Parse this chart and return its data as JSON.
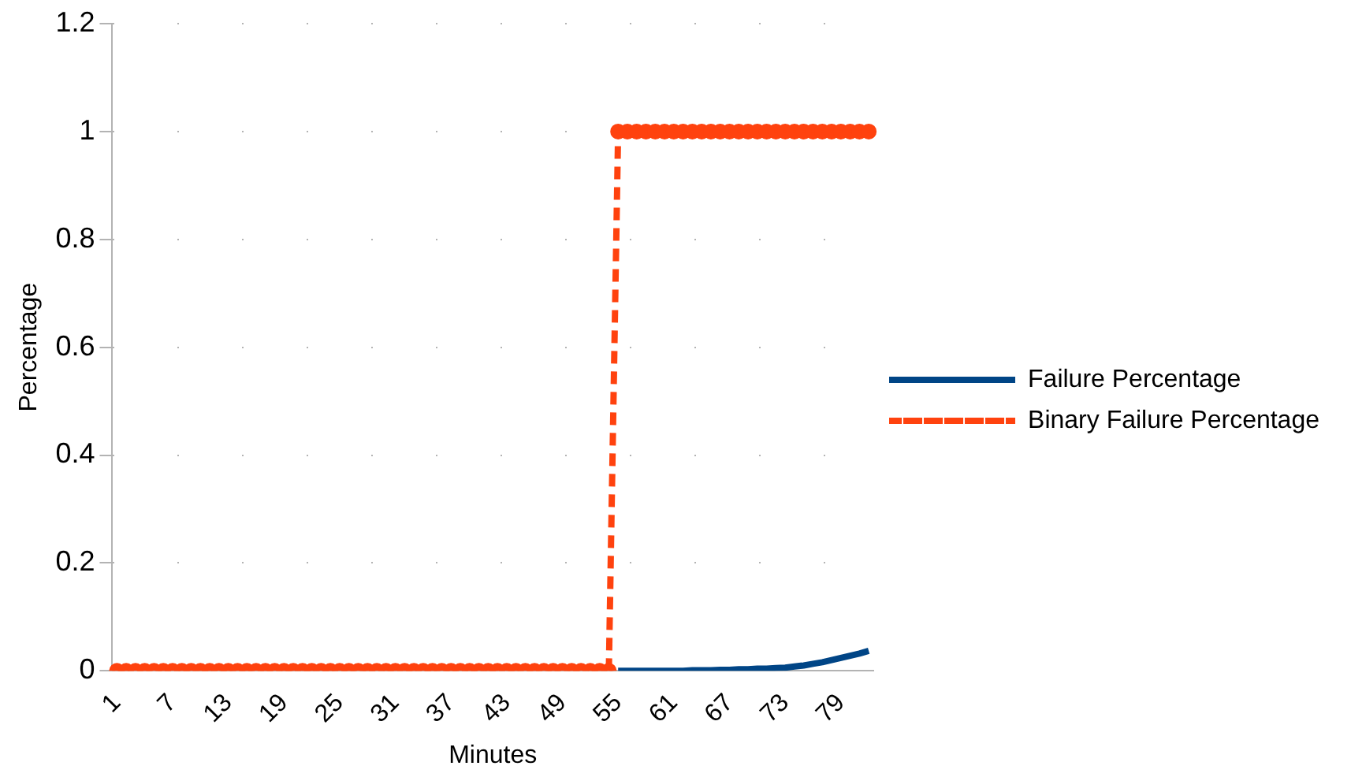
{
  "chart_data": {
    "type": "line",
    "xlabel": "Minutes",
    "ylabel": "Percentage",
    "categories": [
      "1",
      null,
      null,
      null,
      null,
      null,
      "7",
      null,
      null,
      null,
      null,
      null,
      "13",
      null,
      null,
      null,
      null,
      null,
      "19",
      null,
      null,
      null,
      null,
      null,
      "25",
      null,
      null,
      null,
      null,
      null,
      "31",
      null,
      null,
      null,
      null,
      null,
      "37",
      null,
      null,
      null,
      null,
      null,
      "43",
      null,
      null,
      null,
      null,
      null,
      "49",
      null,
      null,
      null,
      null,
      null,
      "55",
      null,
      null,
      null,
      null,
      null,
      "61",
      null,
      null,
      null,
      null,
      null,
      "67",
      null,
      null,
      null,
      null,
      null,
      "73",
      null,
      null,
      null,
      null,
      null,
      "79",
      null,
      null,
      null
    ],
    "series": [
      {
        "name": "Failure Percentage",
        "color": "#004586",
        "line_style": "solid",
        "marker": "none",
        "values": [
          null,
          null,
          null,
          null,
          null,
          null,
          null,
          null,
          null,
          null,
          null,
          null,
          null,
          null,
          null,
          null,
          null,
          null,
          null,
          null,
          null,
          null,
          null,
          null,
          null,
          null,
          null,
          null,
          null,
          null,
          null,
          null,
          null,
          null,
          null,
          null,
          null,
          null,
          null,
          null,
          null,
          null,
          null,
          null,
          null,
          null,
          null,
          null,
          null,
          null,
          null,
          null,
          null,
          null,
          0,
          0,
          0,
          0,
          0,
          0,
          0,
          0,
          0.001,
          0.001,
          0.001,
          0.002,
          0.002,
          0.003,
          0.003,
          0.004,
          0.004,
          0.005,
          0.006,
          0.008,
          0.01,
          0.013,
          0.016,
          0.02,
          0.024,
          0.028,
          0.032,
          0.037
        ]
      },
      {
        "name": "Binary Failure Percentage",
        "color": "#ff420e",
        "line_style": "dashed",
        "marker": "circle",
        "values": [
          0,
          0,
          0,
          0,
          0,
          0,
          0,
          0,
          0,
          0,
          0,
          0,
          0,
          0,
          0,
          0,
          0,
          0,
          0,
          0,
          0,
          0,
          0,
          0,
          0,
          0,
          0,
          0,
          0,
          0,
          0,
          0,
          0,
          0,
          0,
          0,
          0,
          0,
          0,
          0,
          0,
          0,
          0,
          0,
          0,
          0,
          0,
          0,
          0,
          0,
          0,
          0,
          0,
          0,
          1,
          1,
          1,
          1,
          1,
          1,
          1,
          1,
          1,
          1,
          1,
          1,
          1,
          1,
          1,
          1,
          1,
          1,
          1,
          1,
          1,
          1,
          1,
          1,
          1,
          1,
          1,
          1
        ]
      }
    ],
    "ylim": [
      0,
      1.2
    ],
    "yticks": [
      0,
      {
        "value": 0.2,
        "label": "0.2"
      },
      {
        "value": 0.4,
        "label": "0.4"
      },
      {
        "value": 0.6,
        "label": "0.6"
      },
      {
        "value": 0.8,
        "label": "0.8"
      },
      1,
      {
        "value": 1.2,
        "label": "1.2"
      }
    ],
    "grid": "y",
    "legend": "right"
  }
}
